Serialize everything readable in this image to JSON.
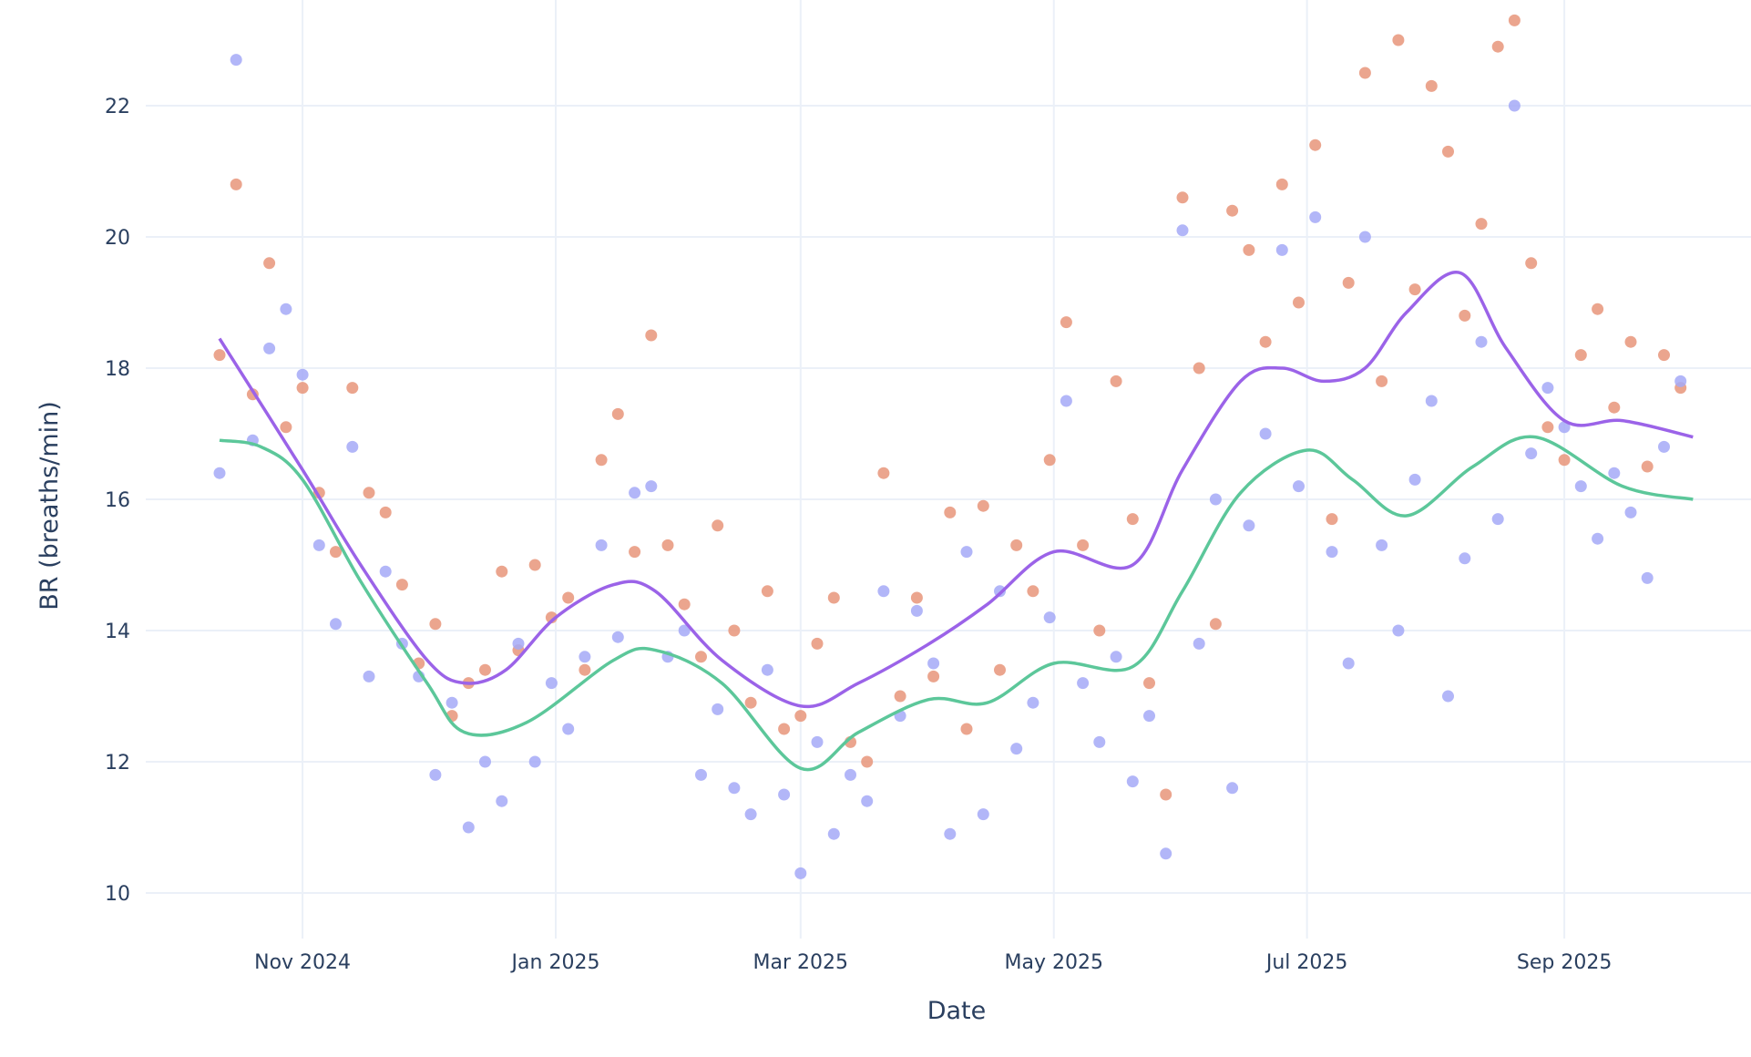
{
  "chart_data": {
    "type": "scatter",
    "title": "",
    "xlabel": "Date",
    "ylabel": "BR (breaths/min)",
    "xlim": [
      "2024-09-24",
      "2025-10-16"
    ],
    "ylim": [
      9.3,
      23.6
    ],
    "grid": true,
    "legend": "none",
    "x_ticks": [
      {
        "date": "2024-11-01",
        "label": "Nov 2024"
      },
      {
        "date": "2025-01-01",
        "label": "Jan 2025"
      },
      {
        "date": "2025-03-01",
        "label": "Mar 2025"
      },
      {
        "date": "2025-05-01",
        "label": "May 2025"
      },
      {
        "date": "2025-07-01",
        "label": "Jul 2025"
      },
      {
        "date": "2025-09-01",
        "label": "Sep 2025"
      }
    ],
    "y_ticks": [
      10,
      12,
      14,
      16,
      18,
      20,
      22
    ],
    "x": [
      "2024-10-12",
      "2024-10-16",
      "2024-10-20",
      "2024-10-24",
      "2024-10-28",
      "2024-11-01",
      "2024-11-05",
      "2024-11-09",
      "2024-11-13",
      "2024-11-17",
      "2024-11-21",
      "2024-11-25",
      "2024-11-29",
      "2024-12-03",
      "2024-12-07",
      "2024-12-11",
      "2024-12-15",
      "2024-12-19",
      "2024-12-23",
      "2024-12-27",
      "2024-12-31",
      "2025-01-04",
      "2025-01-08",
      "2025-01-12",
      "2025-01-16",
      "2025-01-20",
      "2025-01-24",
      "2025-01-28",
      "2025-02-01",
      "2025-02-05",
      "2025-02-09",
      "2025-02-13",
      "2025-02-17",
      "2025-02-21",
      "2025-02-25",
      "2025-03-01",
      "2025-03-05",
      "2025-03-09",
      "2025-03-13",
      "2025-03-17",
      "2025-03-21",
      "2025-03-25",
      "2025-03-29",
      "2025-04-02",
      "2025-04-06",
      "2025-04-10",
      "2025-04-14",
      "2025-04-18",
      "2025-04-22",
      "2025-04-26",
      "2025-04-30",
      "2025-05-04",
      "2025-05-08",
      "2025-05-12",
      "2025-05-16",
      "2025-05-20",
      "2025-05-24",
      "2025-05-28",
      "2025-06-01",
      "2025-06-05",
      "2025-06-09",
      "2025-06-13",
      "2025-06-17",
      "2025-06-21",
      "2025-06-25",
      "2025-06-29",
      "2025-07-03",
      "2025-07-07",
      "2025-07-11",
      "2025-07-15",
      "2025-07-19",
      "2025-07-23",
      "2025-07-27",
      "2025-07-31",
      "2025-08-04",
      "2025-08-08",
      "2025-08-12",
      "2025-08-16",
      "2025-08-20",
      "2025-08-24",
      "2025-08-28",
      "2025-09-01",
      "2025-09-05",
      "2025-09-09",
      "2025-09-13",
      "2025-09-17",
      "2025-09-21",
      "2025-09-25",
      "2025-09-29"
    ],
    "series": [
      {
        "kind": "markers",
        "color": "#e8957a",
        "values": [
          18.2,
          20.8,
          17.6,
          19.6,
          17.1,
          17.7,
          16.1,
          15.2,
          17.7,
          16.1,
          15.8,
          14.7,
          13.5,
          14.1,
          12.7,
          13.2,
          13.4,
          14.9,
          13.7,
          15.0,
          14.2,
          14.5,
          13.4,
          16.6,
          17.3,
          15.2,
          18.5,
          15.3,
          14.4,
          13.6,
          15.6,
          14.0,
          12.9,
          14.6,
          12.5,
          12.7,
          13.8,
          14.5,
          12.3,
          12.0,
          16.4,
          13.0,
          14.5,
          13.3,
          15.8,
          12.5,
          15.9,
          13.4,
          15.3,
          14.6,
          16.6,
          18.7,
          15.3,
          14.0,
          17.8,
          15.7,
          13.2,
          11.5,
          20.6,
          18.0,
          14.1,
          20.4,
          19.8,
          18.4,
          20.8,
          19.0,
          21.4,
          15.7,
          19.3,
          22.5,
          17.8,
          23.0,
          19.2,
          22.3,
          21.3,
          18.8,
          20.2,
          22.9,
          23.3,
          19.6,
          17.1,
          16.6,
          18.2,
          18.9,
          17.4,
          18.4,
          16.5,
          18.2,
          17.7
        ]
      },
      {
        "kind": "markers",
        "color": "#a5a9f7",
        "values": [
          16.4,
          22.7,
          16.9,
          18.3,
          18.9,
          17.9,
          15.3,
          14.1,
          16.8,
          13.3,
          14.9,
          13.8,
          13.3,
          11.8,
          12.9,
          11.0,
          12.0,
          11.4,
          13.8,
          12.0,
          13.2,
          12.5,
          13.6,
          15.3,
          13.9,
          16.1,
          16.2,
          13.6,
          14.0,
          11.8,
          12.8,
          11.6,
          11.2,
          13.4,
          11.5,
          10.3,
          12.3,
          10.9,
          11.8,
          11.4,
          14.6,
          12.7,
          14.3,
          13.5,
          10.9,
          15.2,
          11.2,
          14.6,
          12.2,
          12.9,
          14.2,
          17.5,
          13.2,
          12.3,
          13.6,
          11.7,
          12.7,
          10.6,
          20.1,
          13.8,
          16.0,
          11.6,
          15.6,
          17.0,
          19.8,
          16.2,
          20.3,
          15.2,
          13.5,
          20.0,
          15.3,
          14.0,
          16.3,
          17.5,
          13.0,
          15.1,
          18.4,
          15.7,
          22.0,
          16.7,
          17.7,
          17.1,
          16.2,
          15.4,
          16.4,
          15.8,
          14.8,
          16.8,
          17.8
        ]
      }
    ],
    "trend_lines": [
      {
        "color": "#9b63e8",
        "x": [
          "2024-10-12",
          "2024-11-01",
          "2024-11-15",
          "2024-12-01",
          "2024-12-10",
          "2024-12-20",
          "2025-01-01",
          "2025-01-15",
          "2025-01-25",
          "2025-02-10",
          "2025-03-01",
          "2025-03-15",
          "2025-04-01",
          "2025-04-15",
          "2025-05-01",
          "2025-05-20",
          "2025-06-01",
          "2025-06-15",
          "2025-06-25",
          "2025-07-05",
          "2025-07-15",
          "2025-07-25",
          "2025-08-07",
          "2025-08-18",
          "2025-09-01",
          "2025-09-15",
          "2025-10-02"
        ],
        "values": [
          18.45,
          16.45,
          15.0,
          13.55,
          13.2,
          13.4,
          14.2,
          14.7,
          14.6,
          13.55,
          12.85,
          13.2,
          13.8,
          14.4,
          15.2,
          15.0,
          16.45,
          17.8,
          18.0,
          17.8,
          18.0,
          18.85,
          19.45,
          18.3,
          17.2,
          17.2,
          16.95
        ]
      },
      {
        "color": "#5cc79a",
        "x": [
          "2024-10-12",
          "2024-10-22",
          "2024-11-01",
          "2024-11-15",
          "2024-12-01",
          "2024-12-10",
          "2024-12-25",
          "2025-01-15",
          "2025-01-25",
          "2025-02-10",
          "2025-03-01",
          "2025-03-15",
          "2025-04-01",
          "2025-04-15",
          "2025-05-01",
          "2025-05-20",
          "2025-06-01",
          "2025-06-15",
          "2025-07-01",
          "2025-07-12",
          "2025-07-25",
          "2025-08-10",
          "2025-08-25",
          "2025-09-15",
          "2025-10-02"
        ],
        "values": [
          16.9,
          16.8,
          16.3,
          14.75,
          13.2,
          12.45,
          12.6,
          13.55,
          13.7,
          13.2,
          11.9,
          12.45,
          12.95,
          12.9,
          13.5,
          13.45,
          14.6,
          16.1,
          16.75,
          16.3,
          15.75,
          16.5,
          16.95,
          16.2,
          16.0
        ]
      }
    ]
  }
}
